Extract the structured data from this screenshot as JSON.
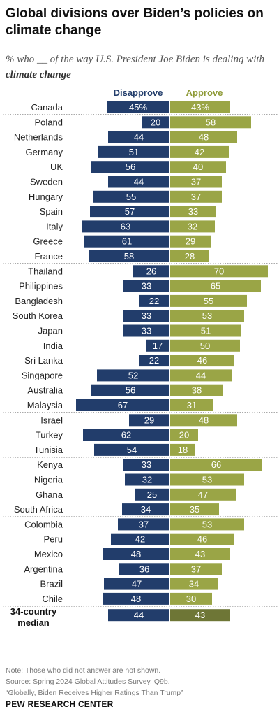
{
  "title": "Global divisions over Biden’s policies on climate change",
  "subtitle_pre": "% who __ of the way U.S. President Joe Biden is dealing with ",
  "subtitle_bold": "climate change",
  "colors": {
    "disapprove": "#223d6b",
    "approve": "#9aa546",
    "median_approve": "#6e7636",
    "disapprove_label": "#223d6b",
    "approve_label": "#8e9a36"
  },
  "chart_data": {
    "type": "bar",
    "series": [
      {
        "name": "Disapprove",
        "values": [
          45,
          20,
          44,
          51,
          56,
          44,
          55,
          57,
          63,
          61,
          58,
          26,
          33,
          22,
          33,
          33,
          17,
          22,
          52,
          56,
          67,
          29,
          62,
          54,
          33,
          32,
          25,
          34,
          37,
          42,
          48,
          36,
          47,
          48,
          44
        ]
      },
      {
        "name": "Approve",
        "values": [
          43,
          58,
          48,
          42,
          40,
          37,
          37,
          33,
          32,
          29,
          28,
          70,
          65,
          55,
          53,
          51,
          50,
          46,
          44,
          38,
          31,
          48,
          20,
          18,
          66,
          53,
          47,
          35,
          53,
          46,
          43,
          37,
          34,
          30,
          43
        ]
      }
    ],
    "categories": [
      "Canada",
      "Poland",
      "Netherlands",
      "Germany",
      "UK",
      "Sweden",
      "Hungary",
      "Spain",
      "Italy",
      "Greece",
      "France",
      "Thailand",
      "Philippines",
      "Bangladesh",
      "South Korea",
      "Japan",
      "India",
      "Sri Lanka",
      "Singapore",
      "Australia",
      "Malaysia",
      "Israel",
      "Turkey",
      "Tunisia",
      "Kenya",
      "Nigeria",
      "Ghana",
      "South Africa",
      "Colombia",
      "Peru",
      "Mexico",
      "Argentina",
      "Brazil",
      "Chile",
      "34-country median"
    ],
    "first_labels": {
      "disapprove": "45%",
      "approve": "43%"
    },
    "median_label_lines": [
      "34-country",
      "median"
    ],
    "group_separators_after": [
      0,
      10,
      20,
      23,
      27,
      33
    ]
  },
  "footer": {
    "note": "Note: Those who did not answer are not shown.",
    "source": "Source: Spring 2024 Global Attitudes Survey. Q9b.",
    "report": "“Globally, Biden Receives Higher Ratings Than Trump”",
    "credit": "PEW RESEARCH CENTER"
  }
}
